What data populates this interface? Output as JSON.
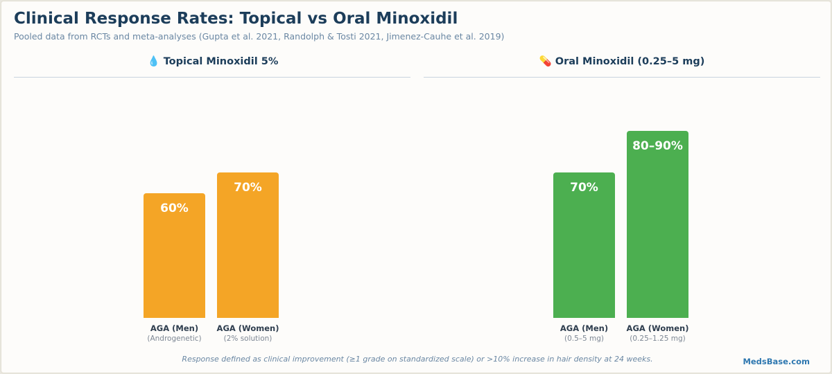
{
  "colors": {
    "topical": "#f4a526",
    "oral": "#4caf50"
  },
  "chart_data": {
    "type": "bar",
    "title": "Clinical Response Rates: Topical vs Oral Minoxidil",
    "subtitle": "Pooled data from RCTs and meta-analyses (Gupta et al. 2021, Randolph & Tosti 2021, Jimenez-Cauhe et al. 2019)",
    "ylim": [
      0,
      100
    ],
    "grid": false,
    "panels": [
      {
        "title": "💧 Topical Minoxidil 5%",
        "color": "#f4a526",
        "bars": [
          {
            "category": "AGA (Men)",
            "sublabel": "(Androgenetic)",
            "value": 60,
            "label": "60%"
          },
          {
            "category": "AGA (Women)",
            "sublabel": "(2% solution)",
            "value": 70,
            "label": "70%"
          }
        ]
      },
      {
        "title": "💊 Oral Minoxidil (0.25–5 mg)",
        "color": "#4caf50",
        "bars": [
          {
            "category": "AGA (Men)",
            "sublabel": "(0.5–5 mg)",
            "value": 70,
            "label": "70%"
          },
          {
            "category": "AGA (Women)",
            "sublabel": "(0.25–1.25 mg)",
            "value": 90,
            "label": "80–90%"
          }
        ]
      }
    ],
    "footnote": "Response defined as clinical improvement (≥1 grade on standardized scale) or >10% increase in hair density at 24 weeks."
  },
  "brand": "MedsBase.com"
}
